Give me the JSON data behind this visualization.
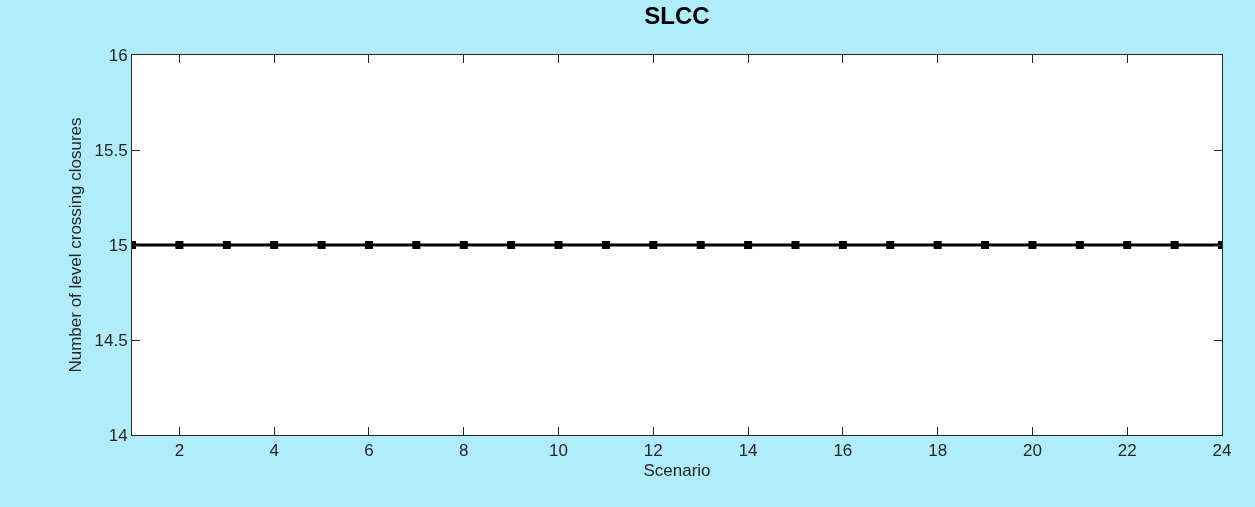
{
  "chart_data": {
    "type": "line",
    "title": "SLCC",
    "xlabel": "Scenario",
    "ylabel": "Number of level crossing closures",
    "x": [
      1,
      2,
      3,
      4,
      5,
      6,
      7,
      8,
      9,
      10,
      11,
      12,
      13,
      14,
      15,
      16,
      17,
      18,
      19,
      20,
      21,
      22,
      23,
      24
    ],
    "series": [
      {
        "color": "#000000",
        "values": [
          15,
          15,
          15,
          15,
          15,
          15,
          15,
          15,
          15,
          15,
          15,
          15,
          15,
          15,
          15,
          15,
          15,
          15,
          15,
          15,
          15,
          15,
          15,
          15
        ]
      }
    ],
    "xlim": [
      1,
      24
    ],
    "xticks": [
      2,
      4,
      6,
      8,
      10,
      12,
      14,
      16,
      18,
      20,
      22,
      24
    ],
    "ylim": [
      14,
      16
    ],
    "yticks": [
      14,
      14.5,
      15,
      15.5,
      16
    ],
    "marker": "square",
    "line_style": "solid"
  }
}
